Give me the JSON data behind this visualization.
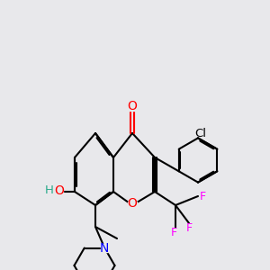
{
  "bg_color": "#e8e8eb",
  "bond_color": "#000000",
  "bond_width": 1.5,
  "atom_colors": {
    "O": "#ff0000",
    "H": "#2aaa8a",
    "N": "#0000ff",
    "F": "#ff00ff",
    "Cl": "#000000"
  },
  "font_size": 9.5
}
